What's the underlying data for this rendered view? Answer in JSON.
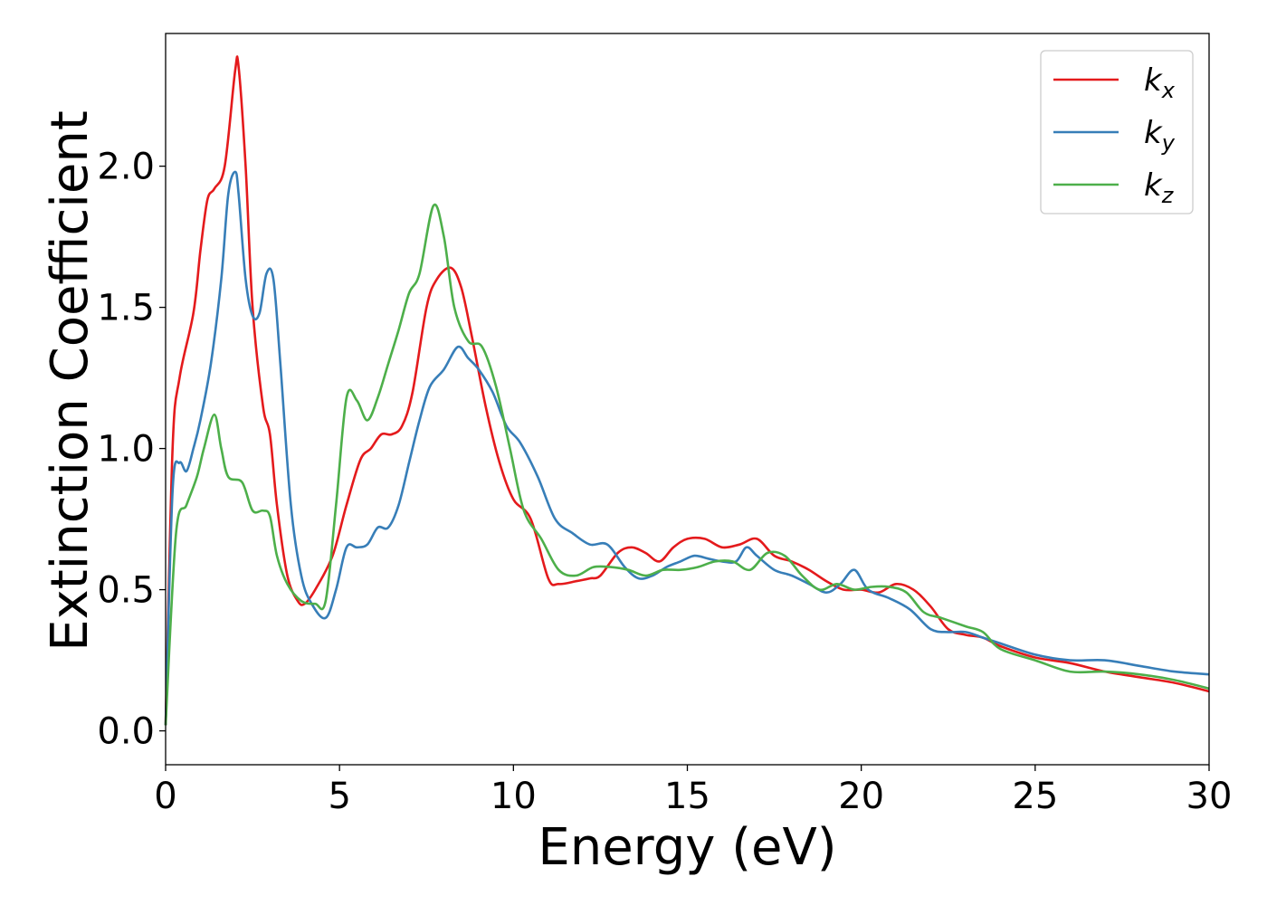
{
  "chart_data": {
    "type": "line",
    "xlabel": "Energy (eV)",
    "ylabel": "Extinction Coefficient",
    "xlim": [
      0,
      30
    ],
    "ylim": [
      -0.12,
      2.47
    ],
    "xticks": [
      "0",
      "5",
      "10",
      "15",
      "20",
      "25",
      "30"
    ],
    "yticks": [
      "0.0",
      "0.5",
      "1.0",
      "1.5",
      "2.0"
    ],
    "grid": false,
    "legend_position": "top-right",
    "series": [
      {
        "name": "k",
        "subscript": "x",
        "color": "#e41a1c",
        "x": [
          0,
          0.2,
          0.4,
          0.8,
          1.0,
          1.2,
          1.4,
          1.7,
          2.0,
          2.1,
          2.3,
          2.5,
          2.8,
          3.0,
          3.2,
          3.5,
          3.8,
          4.0,
          4.3,
          4.8,
          5.2,
          5.6,
          5.9,
          6.2,
          6.5,
          6.8,
          7.1,
          7.5,
          7.8,
          8.2,
          8.5,
          8.8,
          9.2,
          9.6,
          10.0,
          10.5,
          11.0,
          11.3,
          11.8,
          12.2,
          12.5,
          13.0,
          13.4,
          13.8,
          14.2,
          14.6,
          15.0,
          15.5,
          16.0,
          16.5,
          17.0,
          17.5,
          18.0,
          18.5,
          19.0,
          19.5,
          20.0,
          20.5,
          21.0,
          21.5,
          22.0,
          22.5,
          23.0,
          23.5,
          24.0,
          25.0,
          26.0,
          27.0,
          28.0,
          29.0,
          30.0
        ],
        "y": [
          0.02,
          1.0,
          1.25,
          1.48,
          1.7,
          1.88,
          1.92,
          2.0,
          2.34,
          2.35,
          2.0,
          1.5,
          1.15,
          1.05,
          0.8,
          0.55,
          0.46,
          0.45,
          0.5,
          0.62,
          0.8,
          0.96,
          1.0,
          1.05,
          1.05,
          1.08,
          1.2,
          1.5,
          1.6,
          1.64,
          1.57,
          1.4,
          1.15,
          0.95,
          0.82,
          0.75,
          0.54,
          0.52,
          0.53,
          0.54,
          0.55,
          0.63,
          0.65,
          0.63,
          0.6,
          0.65,
          0.68,
          0.68,
          0.65,
          0.66,
          0.68,
          0.62,
          0.6,
          0.57,
          0.53,
          0.5,
          0.5,
          0.49,
          0.52,
          0.5,
          0.44,
          0.36,
          0.34,
          0.33,
          0.3,
          0.26,
          0.24,
          0.21,
          0.19,
          0.17,
          0.14
        ]
      },
      {
        "name": "k",
        "subscript": "y",
        "color": "#377eb8",
        "x": [
          0,
          0.2,
          0.4,
          0.6,
          0.8,
          1.0,
          1.3,
          1.6,
          1.8,
          2.0,
          2.1,
          2.3,
          2.5,
          2.7,
          2.9,
          3.1,
          3.3,
          3.6,
          3.9,
          4.2,
          4.6,
          4.9,
          5.2,
          5.5,
          5.8,
          6.1,
          6.4,
          6.7,
          7.0,
          7.3,
          7.6,
          8.0,
          8.4,
          8.7,
          9.0,
          9.4,
          9.8,
          10.2,
          10.7,
          11.2,
          11.7,
          12.2,
          12.7,
          13.2,
          13.6,
          14.0,
          14.4,
          14.8,
          15.2,
          15.6,
          16.0,
          16.4,
          16.7,
          17.0,
          17.5,
          18.0,
          18.5,
          19.0,
          19.4,
          19.8,
          20.2,
          20.8,
          21.4,
          22.0,
          22.5,
          23.0,
          23.5,
          24.0,
          25.0,
          26.0,
          27.0,
          28.0,
          29.0,
          30.0
        ],
        "y": [
          0.02,
          0.85,
          0.95,
          0.92,
          1.0,
          1.1,
          1.3,
          1.6,
          1.9,
          1.98,
          1.9,
          1.6,
          1.47,
          1.48,
          1.62,
          1.6,
          1.3,
          0.8,
          0.55,
          0.45,
          0.4,
          0.5,
          0.65,
          0.65,
          0.66,
          0.72,
          0.72,
          0.8,
          0.95,
          1.1,
          1.22,
          1.28,
          1.36,
          1.32,
          1.28,
          1.2,
          1.08,
          1.02,
          0.9,
          0.75,
          0.7,
          0.66,
          0.66,
          0.58,
          0.54,
          0.55,
          0.58,
          0.6,
          0.62,
          0.61,
          0.6,
          0.6,
          0.65,
          0.62,
          0.57,
          0.55,
          0.52,
          0.49,
          0.52,
          0.57,
          0.5,
          0.47,
          0.43,
          0.36,
          0.35,
          0.35,
          0.33,
          0.31,
          0.27,
          0.25,
          0.25,
          0.23,
          0.21,
          0.2
        ]
      },
      {
        "name": "k",
        "subscript": "z",
        "color": "#4daf4a",
        "x": [
          0,
          0.3,
          0.6,
          0.9,
          1.1,
          1.4,
          1.6,
          1.8,
          2.2,
          2.5,
          2.8,
          3.0,
          3.2,
          3.5,
          3.9,
          4.3,
          4.6,
          4.9,
          5.2,
          5.5,
          5.8,
          6.1,
          6.4,
          6.7,
          7.0,
          7.3,
          7.7,
          8.0,
          8.3,
          8.7,
          9.1,
          9.5,
          9.9,
          10.3,
          10.8,
          11.3,
          11.8,
          12.3,
          12.8,
          13.3,
          13.8,
          14.3,
          14.8,
          15.3,
          15.8,
          16.3,
          16.8,
          17.3,
          17.8,
          18.3,
          18.8,
          19.3,
          19.8,
          20.3,
          20.8,
          21.3,
          21.8,
          22.3,
          23.0,
          23.5,
          24.0,
          25.0,
          26.0,
          27.0,
          28.0,
          29.0,
          30.0
        ],
        "y": [
          0.02,
          0.7,
          0.8,
          0.9,
          1.0,
          1.12,
          1.0,
          0.9,
          0.88,
          0.78,
          0.78,
          0.76,
          0.62,
          0.52,
          0.46,
          0.45,
          0.46,
          0.8,
          1.18,
          1.17,
          1.1,
          1.18,
          1.3,
          1.42,
          1.55,
          1.62,
          1.86,
          1.75,
          1.5,
          1.38,
          1.36,
          1.22,
          1.0,
          0.78,
          0.68,
          0.57,
          0.55,
          0.58,
          0.58,
          0.57,
          0.55,
          0.57,
          0.57,
          0.58,
          0.6,
          0.6,
          0.57,
          0.63,
          0.62,
          0.55,
          0.5,
          0.52,
          0.5,
          0.51,
          0.51,
          0.49,
          0.42,
          0.4,
          0.37,
          0.35,
          0.29,
          0.25,
          0.21,
          0.21,
          0.2,
          0.18,
          0.15
        ]
      }
    ]
  }
}
